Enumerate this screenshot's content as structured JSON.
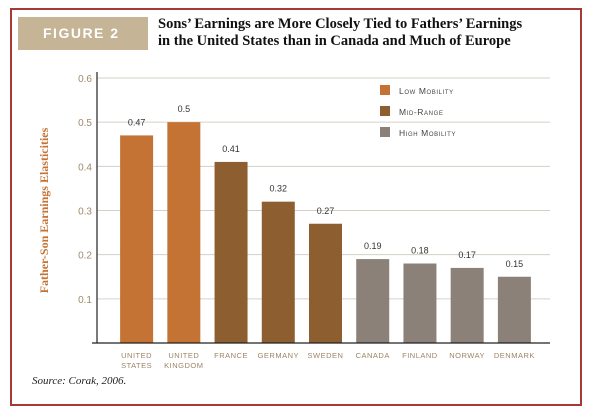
{
  "figure_label": "FIGURE 2",
  "title_lines": [
    "Sons’ Earnings are More Closely Tied to Fathers’ Earnings",
    "in the United States than in Canada and Much of Europe"
  ],
  "source": "Source: Corak, 2006.",
  "chart_data": {
    "type": "bar",
    "title": "Sons’ Earnings are More Closely Tied to Fathers’ Earnings in the United States than in Canada and Much of Europe",
    "xlabel": "",
    "ylabel": "Father-Son Earnings Elasticities",
    "ylim": [
      0,
      0.6
    ],
    "yticks": [
      "0.1",
      "0.2",
      "0.3",
      "0.4",
      "0.5",
      "0.6"
    ],
    "grid": true,
    "legend_position": "top-right",
    "categories": [
      [
        "UNITED",
        "STATES"
      ],
      [
        "UNITED",
        "KINGDOM"
      ],
      [
        "FRANCE"
      ],
      [
        "GERMANY"
      ],
      [
        "SWEDEN"
      ],
      [
        "CANADA"
      ],
      [
        "FINLAND"
      ],
      [
        "NORWAY"
      ],
      [
        "DENMARK"
      ]
    ],
    "values": [
      0.47,
      0.5,
      0.41,
      0.32,
      0.27,
      0.19,
      0.18,
      0.17,
      0.15
    ],
    "value_labels": [
      "0.47",
      "0.5",
      "0.41",
      "0.32",
      "0.27",
      "0.19",
      "0.18",
      "0.17",
      "0.15"
    ],
    "groups": [
      0,
      0,
      1,
      1,
      1,
      2,
      2,
      2,
      2
    ],
    "legend": [
      {
        "name": "Low Mobility",
        "color": "#c47335"
      },
      {
        "name": "Mid-Range",
        "color": "#8d5e2f"
      },
      {
        "name": "High Mobility",
        "color": "#8b8178"
      }
    ]
  }
}
